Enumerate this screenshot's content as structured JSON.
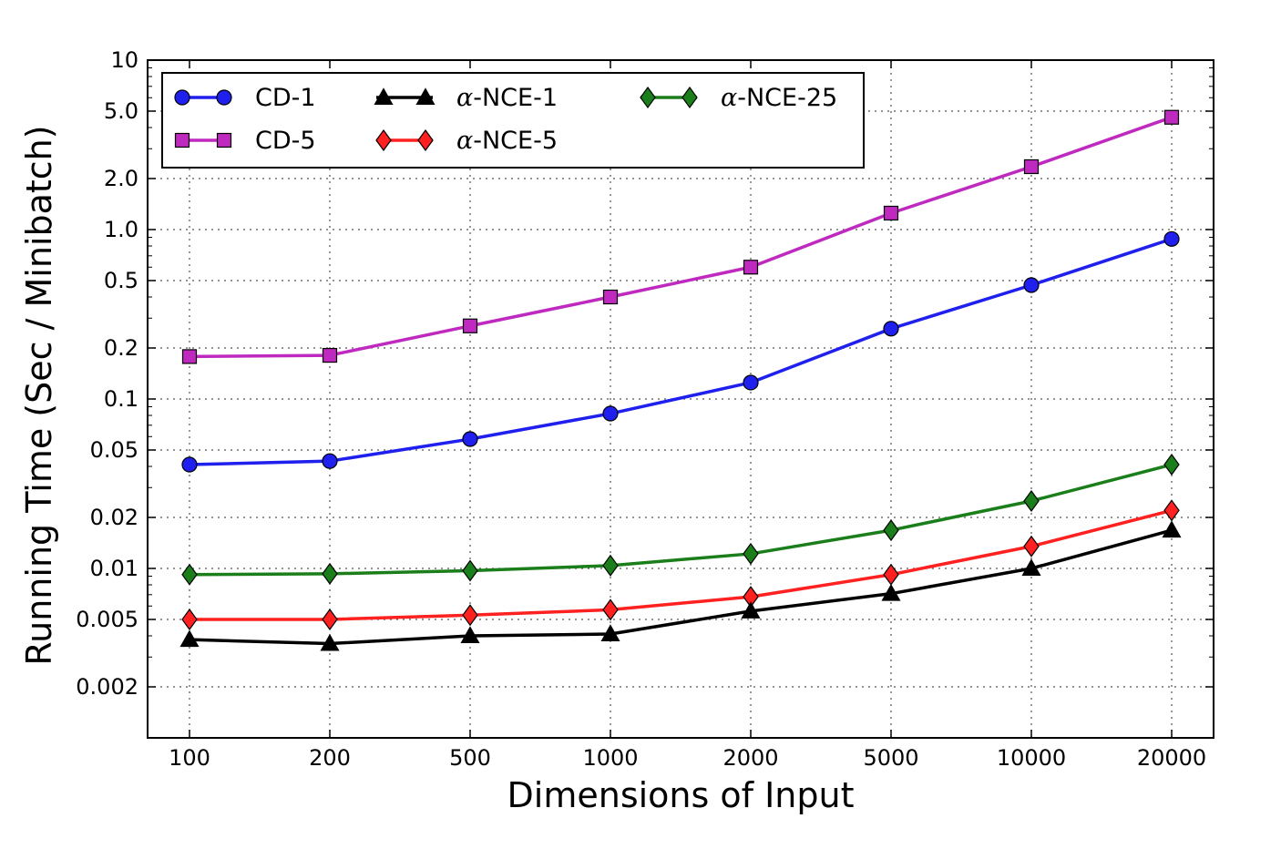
{
  "chart_data": {
    "type": "line",
    "xlabel": "Dimensions of Input",
    "ylabel": "Running Time (Sec / Minibatch)",
    "x_scale": "categorical",
    "y_scale": "log",
    "categories": [
      "100",
      "200",
      "500",
      "1000",
      "2000",
      "5000",
      "10000",
      "20000"
    ],
    "yticks": [
      {
        "value": 0.002,
        "label": "0.002"
      },
      {
        "value": 0.005,
        "label": "0.005"
      },
      {
        "value": 0.01,
        "label": "0.01"
      },
      {
        "value": 0.02,
        "label": "0.02"
      },
      {
        "value": 0.05,
        "label": "0.05"
      },
      {
        "value": 0.1,
        "label": "0.1"
      },
      {
        "value": 0.2,
        "label": "0.2"
      },
      {
        "value": 0.5,
        "label": "0.5"
      },
      {
        "value": 1.0,
        "label": "1.0"
      },
      {
        "value": 2.0,
        "label": "2.0"
      },
      {
        "value": 5.0,
        "label": "5.0"
      },
      {
        "value": 10,
        "label": "10"
      }
    ],
    "ylim": [
      0.001,
      10
    ],
    "grid": true,
    "legend_position": "top-left",
    "series": [
      {
        "name": "CD-1",
        "alpha_prefix": "",
        "name_suffix": "CD-1",
        "color": "#1f1fee",
        "marker": "circle",
        "values": [
          0.041,
          0.043,
          0.058,
          0.082,
          0.125,
          0.26,
          0.47,
          0.88
        ]
      },
      {
        "name": "CD-5",
        "alpha_prefix": "",
        "name_suffix": "CD-5",
        "color": "#bf29bf",
        "marker": "square",
        "values": [
          0.178,
          0.181,
          0.27,
          0.4,
          0.6,
          1.25,
          2.35,
          4.6
        ]
      },
      {
        "name": "α-NCE-1",
        "alpha_prefix": "α",
        "name_suffix": "-NCE-1",
        "color": "#000000",
        "marker": "triangle",
        "values": [
          0.0038,
          0.0036,
          0.004,
          0.0041,
          0.0056,
          0.0071,
          0.01,
          0.0168
        ]
      },
      {
        "name": "α-NCE-5",
        "alpha_prefix": "α",
        "name_suffix": "-NCE-5",
        "color": "#ff2020",
        "marker": "diamond",
        "values": [
          0.005,
          0.005,
          0.0053,
          0.0057,
          0.0068,
          0.0092,
          0.0135,
          0.022
        ]
      },
      {
        "name": "α-NCE-25",
        "alpha_prefix": "α",
        "name_suffix": "-NCE-25",
        "color": "#1a7f1a",
        "marker": "diamond",
        "values": [
          0.0092,
          0.0093,
          0.0097,
          0.0104,
          0.0122,
          0.0168,
          0.025,
          0.041
        ]
      }
    ],
    "legend_order": [
      0,
      2,
      4,
      1,
      3
    ]
  }
}
